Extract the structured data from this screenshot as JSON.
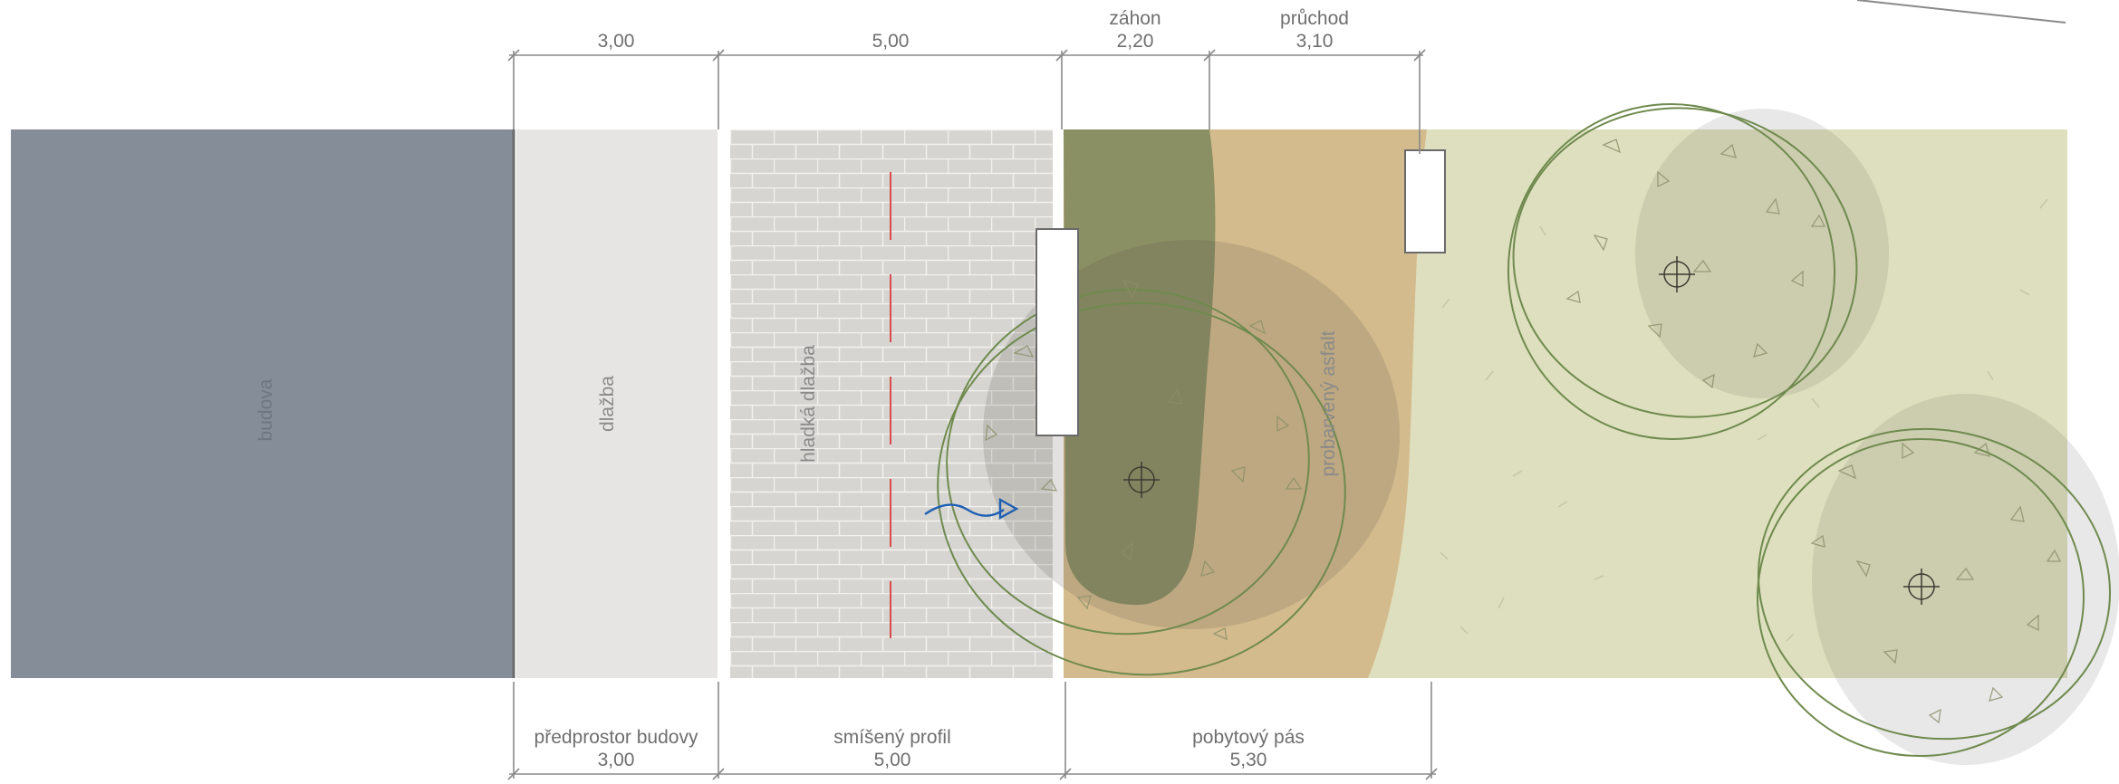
{
  "top_dimensions": [
    {
      "label": "",
      "value": "3,00"
    },
    {
      "label": "",
      "value": "5,00"
    },
    {
      "label": "záhon",
      "value": "2,20"
    },
    {
      "label": "průchod",
      "value": "3,10"
    }
  ],
  "bottom_dimensions": [
    {
      "label": "předprostor budovy",
      "value": "3,00"
    },
    {
      "label": "smíšený profil",
      "value": "5,00"
    },
    {
      "label": "pobytový pás",
      "value": "5,30"
    }
  ],
  "zones": {
    "building": "budova",
    "paving": "dlažba",
    "smooth_paving": "hladká dlažba",
    "colored_asphalt": "probarvený asfalt"
  },
  "colors": {
    "building": "#858e98",
    "paving": "#e6e5e3",
    "brick": "#d6d5d1",
    "bed": "#8b9064",
    "asphalt": "#d3bb8d",
    "meadow": "#dedfbe",
    "tree_outline": "#6f8a4e",
    "dim_line": "#8a8a8a",
    "flow_arrow": "#1f5fb3",
    "center_line": "#d94c4c"
  },
  "icons": {
    "tree_center": "crosshair-icon",
    "flow": "wavy-arrow-icon"
  }
}
